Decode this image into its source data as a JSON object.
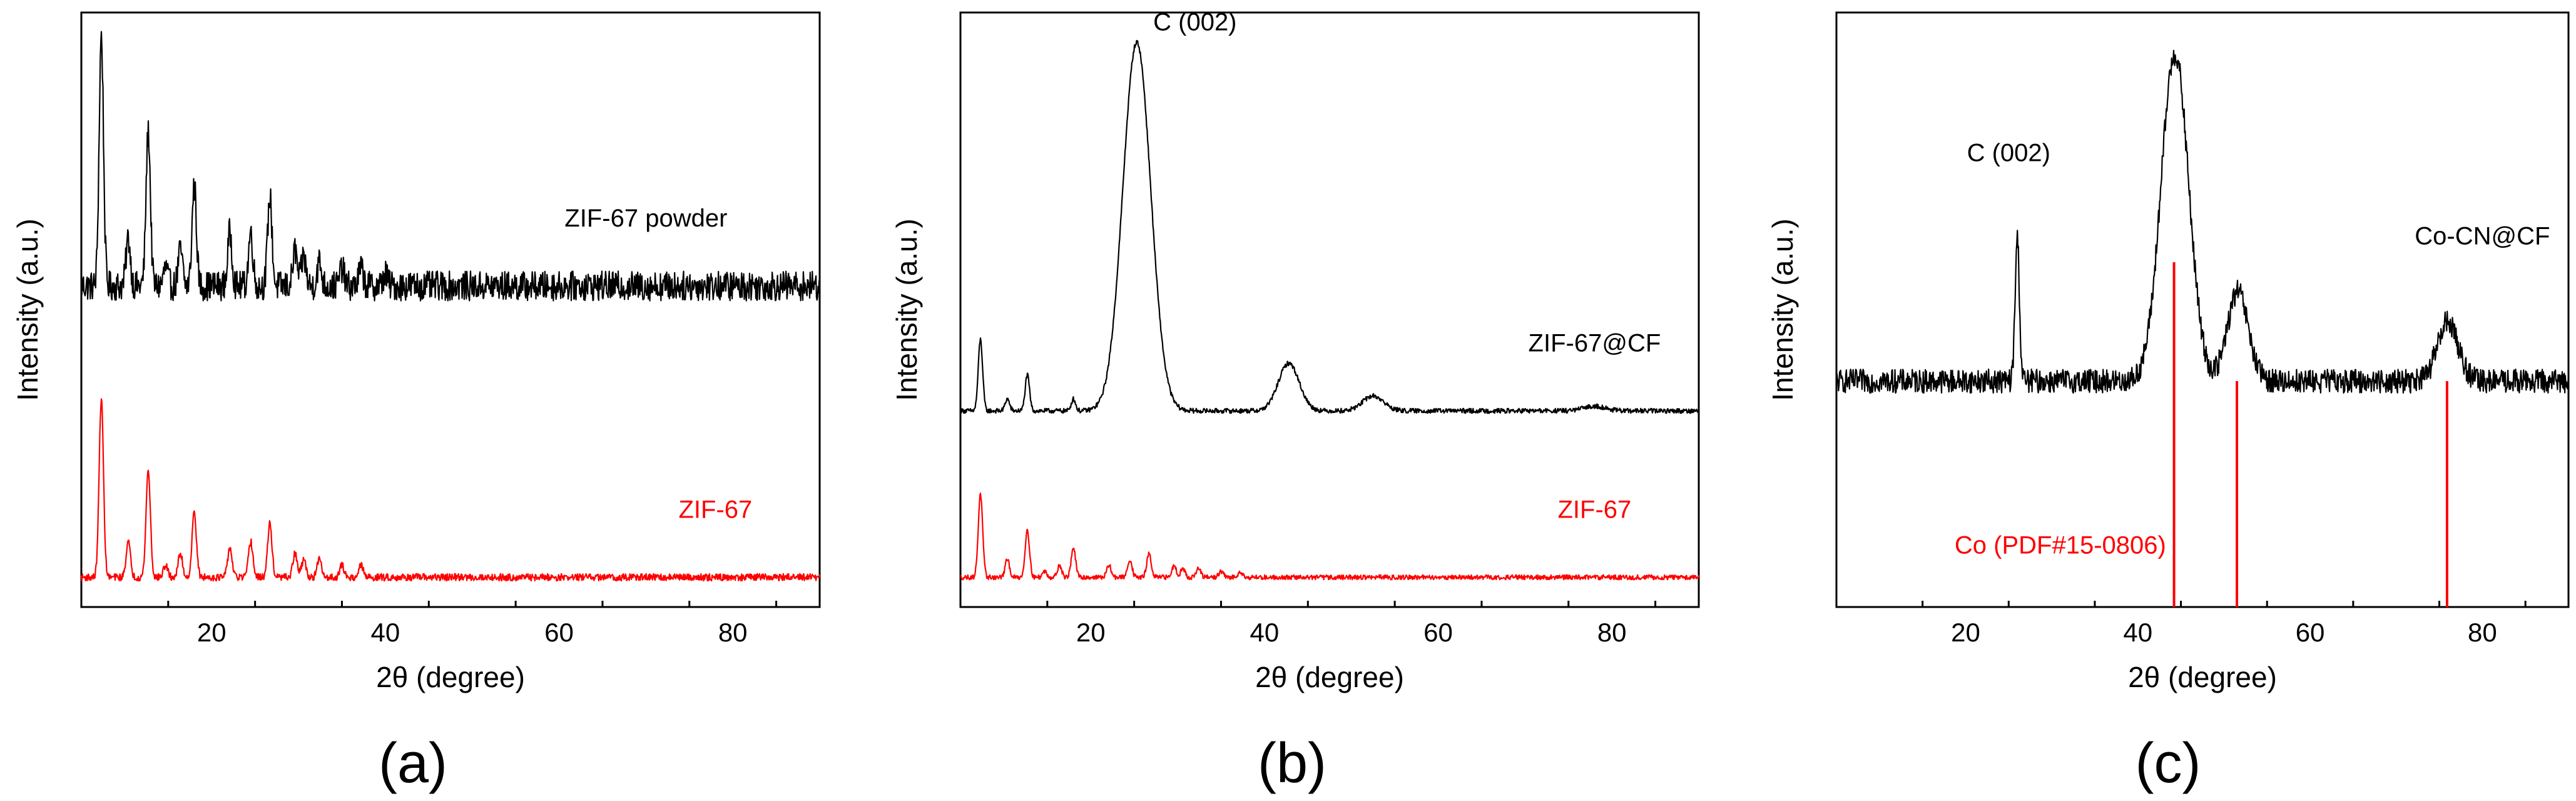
{
  "figure": {
    "panel_labels": [
      "(a)",
      "(b)",
      "(c)"
    ]
  },
  "chart_data": [
    {
      "panel": "(a)",
      "type": "line",
      "xlabel": "2θ (degree)",
      "ylabel": "Intensity (a.u.)",
      "xlim": [
        5,
        90
      ],
      "xticks": [
        20,
        40,
        60,
        80
      ],
      "yticks": [],
      "series": [
        {
          "name": "ZIF-67 powder",
          "color": "#000000",
          "baseline": 0.54,
          "noise": 0.025,
          "peaks": [
            [
              7.3,
              0.42
            ],
            [
              10.4,
              0.08
            ],
            [
              12.7,
              0.26
            ],
            [
              14.7,
              0.03
            ],
            [
              16.4,
              0.06
            ],
            [
              18.0,
              0.17
            ],
            [
              22.1,
              0.09
            ],
            [
              24.5,
              0.09
            ],
            [
              26.7,
              0.15
            ],
            [
              29.6,
              0.06
            ],
            [
              30.6,
              0.05
            ],
            [
              32.4,
              0.04
            ],
            [
              35.0,
              0.03
            ],
            [
              37.2,
              0.03
            ],
            [
              40.0,
              0.02
            ]
          ]
        },
        {
          "name": "ZIF-67",
          "color": "#ff0000",
          "baseline": 0.05,
          "noise": 0.006,
          "peaks": [
            [
              7.3,
              0.3
            ],
            [
              10.4,
              0.06
            ],
            [
              12.7,
              0.18
            ],
            [
              14.7,
              0.02
            ],
            [
              16.4,
              0.04
            ],
            [
              18.0,
              0.11
            ],
            [
              22.1,
              0.05
            ],
            [
              24.5,
              0.06
            ],
            [
              26.7,
              0.09
            ],
            [
              29.6,
              0.04
            ],
            [
              30.6,
              0.03
            ],
            [
              32.4,
              0.03
            ],
            [
              35.0,
              0.02
            ],
            [
              37.2,
              0.02
            ]
          ]
        }
      ],
      "annotations": [
        {
          "text": "ZIF-67 powder",
          "x": 70,
          "y": 0.64,
          "color": "#000000"
        },
        {
          "text": "ZIF-67",
          "x": 78,
          "y": 0.15,
          "color": "#ff0000"
        }
      ]
    },
    {
      "panel": "(b)",
      "type": "line",
      "xlabel": "2θ (degree)",
      "ylabel": "Intensity (a.u.)",
      "xlim": [
        5,
        90
      ],
      "xticks": [
        20,
        40,
        60,
        80
      ],
      "yticks": [],
      "series": [
        {
          "name": "ZIF-67@CF",
          "color": "#000000",
          "baseline": 0.33,
          "noise": 0.004,
          "peaks": [
            [
              7.3,
              0.12
            ],
            [
              10.4,
              0.02
            ],
            [
              12.7,
              0.06
            ],
            [
              18.0,
              0.02
            ],
            [
              25.3,
              0.62
            ],
            [
              42.8,
              0.08
            ],
            [
              52.5,
              0.025
            ],
            [
              78.0,
              0.008
            ]
          ]
        },
        {
          "name": "ZIF-67",
          "color": "#ff0000",
          "baseline": 0.05,
          "noise": 0.004,
          "peaks": [
            [
              7.3,
              0.14
            ],
            [
              10.4,
              0.03
            ],
            [
              12.7,
              0.08
            ],
            [
              14.7,
              0.01
            ],
            [
              16.4,
              0.02
            ],
            [
              18.0,
              0.05
            ],
            [
              22.1,
              0.02
            ],
            [
              24.5,
              0.03
            ],
            [
              26.7,
              0.04
            ],
            [
              29.6,
              0.02
            ],
            [
              30.6,
              0.015
            ],
            [
              32.4,
              0.015
            ],
            [
              35.0,
              0.01
            ],
            [
              37.2,
              0.01
            ]
          ]
        }
      ],
      "annotations": [
        {
          "text": "C (002)",
          "x": 32,
          "y": 0.97,
          "color": "#000000"
        },
        {
          "text": "ZIF-67@CF",
          "x": 78,
          "y": 0.43,
          "color": "#000000"
        },
        {
          "text": "ZIF-67",
          "x": 78,
          "y": 0.15,
          "color": "#ff0000"
        }
      ]
    },
    {
      "panel": "(c)",
      "type": "line",
      "xlabel": "2θ (degree)",
      "ylabel": "Intensity (a.u.)",
      "xlim": [
        5,
        90
      ],
      "xticks": [
        20,
        40,
        60,
        80
      ],
      "yticks": [],
      "series": [
        {
          "name": "Co-CN@CF",
          "color": "#000000",
          "baseline": 0.38,
          "noise": 0.02,
          "peaks": [
            [
              26.0,
              0.24
            ],
            [
              44.3,
              0.55
            ],
            [
              51.6,
              0.15
            ],
            [
              76.0,
              0.1
            ]
          ]
        }
      ],
      "reference": {
        "name": "Co (PDF#15-0806)",
        "color": "#ff0000",
        "lines": [
          [
            44.2,
            0.58
          ],
          [
            51.5,
            0.38
          ],
          [
            75.9,
            0.38
          ]
        ]
      },
      "annotations": [
        {
          "text": "C (002)",
          "x": 25,
          "y": 0.75,
          "color": "#000000"
        },
        {
          "text": "Co-CN@CF",
          "x": 80,
          "y": 0.61,
          "color": "#000000"
        },
        {
          "text": "Co (PDF#15-0806)",
          "x": 31,
          "y": 0.09,
          "color": "#ff0000"
        }
      ]
    }
  ]
}
